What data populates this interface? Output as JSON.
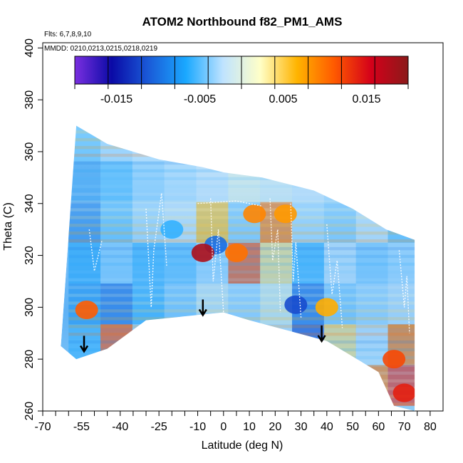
{
  "chart_data": {
    "type": "heatmap",
    "title": "ATOM2 Northbound f82_PM1_AMS",
    "annotations": {
      "flights": "Flts: 6,7,8,9,10",
      "dates": "MMDD: 0210,0213,0215,0218,0219"
    },
    "xlabel": "Latitude (deg N)",
    "ylabel": "Theta (C)",
    "xlim": [
      -70,
      85
    ],
    "ylim": [
      260,
      402
    ],
    "x_ticks_major": [
      -70,
      -55,
      -40,
      -25,
      -10,
      0,
      10,
      20,
      30,
      40,
      50,
      60,
      70,
      80
    ],
    "x_tick_labels": [
      "-70",
      "-55",
      "-40",
      "-25",
      "-10",
      "0",
      "10",
      "20",
      "30",
      "40",
      "50",
      "60",
      "70",
      "80"
    ],
    "x_ticks_minor_step": 5,
    "y_ticks": [
      260,
      280,
      300,
      320,
      340,
      360,
      380,
      400
    ],
    "y_tick_labels": [
      "260",
      "280",
      "300",
      "320",
      "340",
      "360",
      "380",
      "400"
    ],
    "colorbar": {
      "colors": [
        "#7a2fe0",
        "#0a0aa6",
        "#1a5bd8",
        "#1aa8ff",
        "#bfe3ff",
        "#ffffc8",
        "#ffb400",
        "#ff5a00",
        "#d4001a",
        "#8b1a1a"
      ],
      "ticks": [
        -0.015,
        -0.005,
        0.005,
        0.015
      ],
      "tick_labels": [
        "-0.015",
        "-0.005",
        "0.005",
        "0.015"
      ],
      "range": [
        -0.02,
        0.02
      ]
    },
    "envelope": [
      [
        -57,
        370
      ],
      [
        -45,
        363
      ],
      [
        -25,
        357
      ],
      [
        -8,
        354
      ],
      [
        0,
        352
      ],
      [
        15,
        350
      ],
      [
        35,
        345
      ],
      [
        50,
        338
      ],
      [
        63,
        330
      ],
      [
        74,
        326
      ],
      [
        74,
        260
      ],
      [
        66,
        262
      ],
      [
        60,
        275
      ],
      [
        40,
        287
      ],
      [
        25,
        291
      ],
      [
        10,
        295
      ],
      [
        0,
        298
      ],
      [
        -10,
        297
      ],
      [
        -30,
        295
      ],
      [
        -45,
        284
      ],
      [
        -57,
        280
      ],
      [
        -63,
        285
      ]
    ],
    "cloud_field_values": [
      [
        -0.006,
        -0.004,
        -0.003,
        -0.004,
        -0.002,
        -0.001,
        0.0,
        -0.002,
        -0.003,
        -0.004,
        -0.005
      ],
      [
        -0.008,
        -0.006,
        -0.004,
        -0.003,
        -0.002,
        0.0,
        -0.001,
        -0.002,
        -0.003,
        -0.005,
        -0.006
      ],
      [
        -0.009,
        -0.005,
        -0.003,
        -0.002,
        0.006,
        -0.004,
        0.01,
        -0.003,
        -0.004,
        -0.002,
        -0.005
      ],
      [
        -0.007,
        -0.004,
        -0.006,
        -0.005,
        -0.003,
        0.012,
        0.004,
        -0.006,
        -0.002,
        -0.004,
        -0.003
      ],
      [
        -0.008,
        -0.01,
        -0.006,
        -0.004,
        -0.001,
        -0.003,
        0.0,
        -0.01,
        -0.004,
        -0.003,
        -0.002
      ],
      [
        -0.006,
        0.012,
        -0.003,
        0.002,
        -0.004,
        -0.006,
        -0.002,
        -0.012,
        0.004,
        -0.002,
        0.01
      ],
      [
        -0.009,
        -0.004,
        -0.003,
        0.004,
        0.0,
        -0.002,
        -0.001,
        -0.004,
        -0.003,
        0.01,
        0.014
      ]
    ],
    "highlights": [
      {
        "lat": -53,
        "theta": 299,
        "value": 0.011
      },
      {
        "lat": 5,
        "theta": 321,
        "value": 0.01
      },
      {
        "lat": 12,
        "theta": 336,
        "value": 0.009
      },
      {
        "lat": 24,
        "theta": 336,
        "value": 0.008
      },
      {
        "lat": 40,
        "theta": 300,
        "value": 0.007
      },
      {
        "lat": 66,
        "theta": 280,
        "value": 0.012
      },
      {
        "lat": 70,
        "theta": 267,
        "value": 0.014
      },
      {
        "lat": -20,
        "theta": 330,
        "value": -0.006
      },
      {
        "lat": 28,
        "theta": 301,
        "value": -0.012
      },
      {
        "lat": -3,
        "theta": 324,
        "value": -0.01
      },
      {
        "lat": -8,
        "theta": 321,
        "value": 0.018
      }
    ],
    "arrows": [
      {
        "lat": -54,
        "theta": 289
      },
      {
        "lat": -8,
        "theta": 303
      },
      {
        "lat": 38,
        "theta": 293
      }
    ],
    "flight_tracks": [
      [
        [
          -30,
          338
        ],
        [
          -28,
          300
        ],
        [
          -27,
          322
        ],
        [
          -24,
          344
        ],
        [
          -22,
          316
        ]
      ],
      [
        [
          -5,
          342
        ],
        [
          -4,
          310
        ],
        [
          -2,
          330
        ],
        [
          0,
          298
        ]
      ],
      [
        [
          18,
          342
        ],
        [
          19,
          318
        ],
        [
          21,
          330
        ],
        [
          22,
          298
        ]
      ],
      [
        [
          26,
          340
        ],
        [
          27,
          310
        ],
        [
          28,
          325
        ],
        [
          30,
          296
        ]
      ],
      [
        [
          40,
          332
        ],
        [
          42,
          305
        ],
        [
          44,
          318
        ],
        [
          46,
          292
        ]
      ],
      [
        [
          68,
          322
        ],
        [
          70,
          300
        ],
        [
          71,
          312
        ],
        [
          72,
          290
        ]
      ],
      [
        [
          -52,
          330
        ],
        [
          -50,
          314
        ],
        [
          -47,
          326
        ]
      ],
      [
        [
          -10,
          340
        ],
        [
          5,
          341
        ],
        [
          15,
          339
        ]
      ]
    ]
  }
}
